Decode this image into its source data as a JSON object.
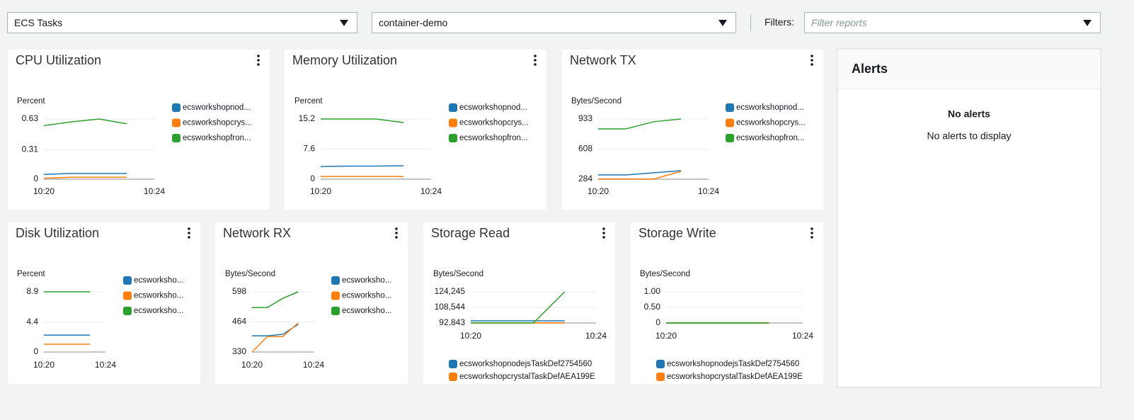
{
  "toolbar": {
    "resource_type": "ECS Tasks",
    "cluster": "container-demo",
    "filters_label": "Filters:",
    "filter_placeholder": "Filter reports"
  },
  "chart_data": [
    {
      "type": "line",
      "title": "CPU Utilization",
      "y_label": "Percent",
      "categories": [
        "10:20",
        null,
        null,
        null,
        "10:24"
      ],
      "series": [
        {
          "name": "ecsworkshopnod...",
          "color": "#1f77b4",
          "values": [
            0.05,
            0.06,
            0.06,
            0.06,
            null
          ]
        },
        {
          "name": "ecsworkshopcrys...",
          "color": "#ff7f0e",
          "values": [
            0.01,
            0.02,
            0.02,
            0.02,
            null
          ]
        },
        {
          "name": "ecsworkshopfron...",
          "color": "#2ca02c",
          "values": [
            0.56,
            0.6,
            0.63,
            0.58,
            null
          ]
        }
      ],
      "ylim": [
        0,
        0.63
      ],
      "yticks": [
        0,
        0.31,
        0.63
      ],
      "grid": true,
      "legend": "right"
    },
    {
      "type": "line",
      "title": "Memory Utilization",
      "y_label": "Percent",
      "categories": [
        "10:20",
        null,
        null,
        null,
        "10:24"
      ],
      "series": [
        {
          "name": "ecsworkshopnod...",
          "color": "#1f77b4",
          "values": [
            3.2,
            3.3,
            3.3,
            3.4,
            null
          ]
        },
        {
          "name": "ecsworkshopcrys...",
          "color": "#ff7f0e",
          "values": [
            0.7,
            0.7,
            0.7,
            0.7,
            null
          ]
        },
        {
          "name": "ecsworkshopfron...",
          "color": "#2ca02c",
          "values": [
            15.2,
            15.2,
            15.2,
            14.3,
            null
          ]
        }
      ],
      "ylim": [
        0,
        15.2
      ],
      "yticks": [
        0,
        7.6,
        15.2
      ],
      "grid": true,
      "legend": "right"
    },
    {
      "type": "line",
      "title": "Network TX",
      "y_label": "Bytes/Second",
      "categories": [
        "10:20",
        null,
        null,
        null,
        "10:24"
      ],
      "series": [
        {
          "name": "ecsworkshopnod...",
          "color": "#1f77b4",
          "values": [
            330,
            330,
            353,
            376,
            null
          ]
        },
        {
          "name": "ecsworkshopcrys...",
          "color": "#ff7f0e",
          "values": [
            286,
            286,
            285,
            368,
            null
          ]
        },
        {
          "name": "ecsworkshopfron...",
          "color": "#2ca02c",
          "values": [
            826,
            826,
            903,
            933,
            null
          ]
        }
      ],
      "ylim": [
        284,
        933
      ],
      "yticks": [
        284,
        608,
        933
      ],
      "grid": true,
      "legend": "right"
    },
    {
      "type": "line",
      "title": "Disk Utilization",
      "y_label": "Percent",
      "categories": [
        "10:20",
        null,
        null,
        null,
        "10:24"
      ],
      "series": [
        {
          "name": "ecsworksho...",
          "color": "#1f77b4",
          "values": [
            2.5,
            2.5,
            2.5,
            2.5,
            null
          ]
        },
        {
          "name": "ecsworksho...",
          "color": "#ff7f0e",
          "values": [
            1.15,
            1.15,
            1.15,
            1.15,
            null
          ]
        },
        {
          "name": "ecsworksho...",
          "color": "#2ca02c",
          "values": [
            8.9,
            8.9,
            8.9,
            8.9,
            null
          ]
        }
      ],
      "ylim": [
        0,
        8.9
      ],
      "yticks": [
        0,
        4.4,
        8.9
      ],
      "grid": true,
      "legend": "right"
    },
    {
      "type": "line",
      "title": "Network RX",
      "y_label": "Bytes/Second",
      "categories": [
        "10:20",
        null,
        null,
        null,
        "10:24"
      ],
      "series": [
        {
          "name": "ecsworksho...",
          "color": "#1f77b4",
          "values": [
            402,
            402,
            409,
            453,
            null
          ]
        },
        {
          "name": "ecsworksho...",
          "color": "#ff7f0e",
          "values": [
            330,
            399,
            399,
            459,
            null
          ]
        },
        {
          "name": "ecsworksho...",
          "color": "#2ca02c",
          "values": [
            528,
            528,
            569,
            598,
            null
          ]
        }
      ],
      "ylim": [
        330,
        598
      ],
      "yticks": [
        330,
        464,
        598
      ],
      "grid": true,
      "legend": "right"
    },
    {
      "type": "line",
      "title": "Storage Read",
      "y_label": "Bytes/Second",
      "categories": [
        "10:20",
        null,
        null,
        null,
        "10:24"
      ],
      "series": [
        {
          "name": "ecsworkshopnodejsTaskDef2754560",
          "color": "#1f77b4",
          "values": [
            95000,
            95000,
            95000,
            95000,
            null
          ]
        },
        {
          "name": "ecsworkshopcrystalTaskDefAEA199E",
          "color": "#ff7f0e",
          "values": [
            92900,
            92900,
            92900,
            92900,
            null
          ]
        },
        {
          "color": "#2ca02c",
          "values": [
            92843,
            92843,
            92843,
            124245,
            null
          ]
        }
      ],
      "ylim": [
        92843,
        124245
      ],
      "yticks": [
        {
          "value": 92843,
          "label": "92,843"
        },
        {
          "value": 108544,
          "label": "108,544"
        },
        {
          "value": 124245,
          "label": "124,245"
        }
      ],
      "grid": true,
      "legend": "bottom"
    },
    {
      "type": "line",
      "title": "Storage Write",
      "y_label": "Bytes/Second",
      "categories": [
        "10:20",
        null,
        null,
        null,
        "10:24"
      ],
      "series": [
        {
          "name": "ecsworkshopnodejsTaskDef2754560",
          "color": "#1f77b4",
          "values": [
            0,
            0,
            0,
            0,
            null
          ]
        },
        {
          "name": "ecsworkshopcrystalTaskDefAEA199E",
          "color": "#ff7f0e",
          "values": [
            0,
            0,
            0,
            0,
            null
          ]
        },
        {
          "color": "#2ca02c",
          "values": [
            0,
            0,
            0,
            0,
            null
          ]
        }
      ],
      "ylim": [
        0,
        1
      ],
      "yticks": [
        0,
        {
          "value": 0.5,
          "label": "0.50"
        },
        {
          "value": 1,
          "label": "1.00"
        }
      ],
      "grid": true,
      "legend": "bottom"
    }
  ],
  "alerts": {
    "title": "Alerts",
    "empty_title": "No alerts",
    "empty_text": "No alerts to display"
  }
}
